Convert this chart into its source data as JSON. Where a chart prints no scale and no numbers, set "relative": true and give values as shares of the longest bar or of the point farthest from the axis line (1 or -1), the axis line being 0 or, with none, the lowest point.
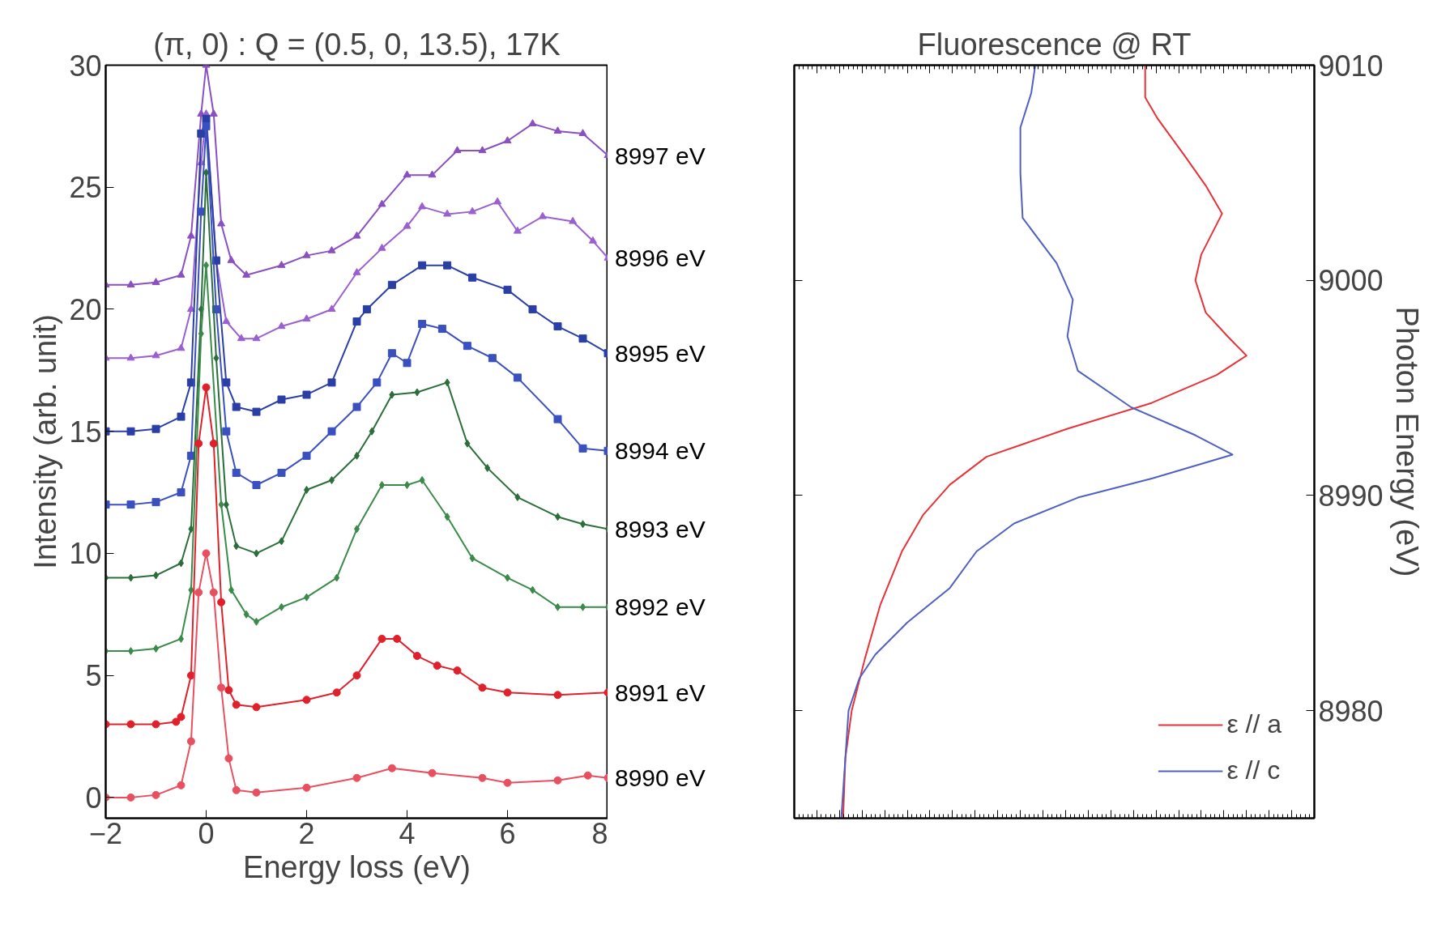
{
  "chart_data": [
    {
      "type": "line",
      "title": "(π, 0) : Q = (0.5, 0, 13.5), 17K",
      "xlabel": "Energy loss (eV)",
      "ylabel": "Intensity (arb. unit)",
      "xlim": [
        -2,
        8
      ],
      "ylim": [
        -0.85,
        30
      ],
      "xticks": [
        -2,
        0,
        2,
        4,
        6,
        8
      ],
      "yticks": [
        0,
        5,
        10,
        15,
        20,
        25,
        30
      ],
      "grid": false,
      "legend": false,
      "line_style": "solid",
      "series": [
        {
          "name": "8997 eV",
          "color": "#8a4fc0",
          "marker": "triangle",
          "x": [
            -2,
            -1.5,
            -1,
            -0.5,
            -0.3,
            -0.1,
            0,
            0.15,
            0.3,
            0.5,
            0.8,
            1.5,
            2,
            2.5,
            3,
            3.5,
            4,
            4.5,
            5,
            5.5,
            6,
            6.5,
            7,
            7.5,
            8
          ],
          "values": [
            21,
            21,
            21.1,
            21.4,
            23,
            28,
            30,
            28,
            23.5,
            22,
            21.4,
            21.8,
            22.2,
            22.4,
            23,
            24.3,
            25.5,
            25.5,
            26.5,
            26.5,
            26.9,
            27.6,
            27.3,
            27.2,
            26.3
          ]
        },
        {
          "name": "8996 eV",
          "color": "#9a5fd0",
          "marker": "triangle",
          "x": [
            -2,
            -1.5,
            -1,
            -0.5,
            -0.3,
            -0.1,
            0,
            0.2,
            0.4,
            0.7,
            1,
            1.5,
            2,
            2.5,
            3,
            3.5,
            4,
            4.3,
            4.8,
            5.3,
            5.8,
            6.2,
            6.7,
            7.3,
            7.7,
            8
          ],
          "values": [
            18,
            18,
            18.1,
            18.4,
            20,
            26,
            28,
            22,
            19.5,
            18.8,
            18.8,
            19.3,
            19.6,
            20,
            21.5,
            22.5,
            23.4,
            24.2,
            23.9,
            24,
            24.4,
            23.2,
            23.8,
            23.6,
            22.8,
            22.1
          ]
        },
        {
          "name": "8995 eV",
          "color": "#2a3fa6",
          "marker": "square",
          "x": [
            -2,
            -1.5,
            -1,
            -0.5,
            -0.3,
            -0.1,
            0,
            0.2,
            0.4,
            0.6,
            1,
            1.5,
            2,
            2.5,
            3,
            3.2,
            3.7,
            4.3,
            4.8,
            5.3,
            6,
            6.5,
            7,
            7.5,
            8
          ],
          "values": [
            15,
            15,
            15.1,
            15.6,
            17,
            27.2,
            27.8,
            22,
            17,
            16,
            15.8,
            16.3,
            16.5,
            17,
            19.5,
            20,
            21,
            21.8,
            21.8,
            21.3,
            20.8,
            20,
            19.3,
            18.8,
            18.2
          ]
        },
        {
          "name": "8994 eV",
          "color": "#3a50c0",
          "marker": "square",
          "x": [
            -2,
            -1.5,
            -1,
            -0.5,
            -0.3,
            -0.1,
            0,
            0.2,
            0.4,
            0.6,
            1,
            1.5,
            2,
            2.5,
            3,
            3.4,
            3.7,
            4,
            4.3,
            4.7,
            5.2,
            5.7,
            6.2,
            7,
            7.5,
            8
          ],
          "values": [
            12,
            12,
            12.1,
            12.5,
            14,
            24,
            27.5,
            20,
            15,
            13.3,
            12.8,
            13.3,
            14,
            15,
            16,
            17,
            18.2,
            17.8,
            19.4,
            19.2,
            18.5,
            18,
            17.2,
            15.5,
            14.3,
            14.2
          ]
        },
        {
          "name": "8993 eV",
          "color": "#2a6e3a",
          "marker": "diamond",
          "x": [
            -2,
            -1.5,
            -1,
            -0.5,
            -0.3,
            -0.1,
            0,
            0.2,
            0.4,
            0.6,
            1,
            1.5,
            2,
            2.5,
            3,
            3.3,
            3.7,
            4.2,
            4.8,
            5.2,
            5.6,
            6.2,
            7,
            7.5,
            8
          ],
          "values": [
            9,
            9,
            9.1,
            9.6,
            11,
            20,
            25.6,
            18,
            12,
            10.3,
            10,
            10.5,
            12.6,
            13,
            14,
            15,
            16.5,
            16.6,
            17,
            14.5,
            13.5,
            12.3,
            11.5,
            11.2,
            11
          ]
        },
        {
          "name": "8992 eV",
          "color": "#3a8a4a",
          "marker": "diamond",
          "x": [
            -2,
            -1.5,
            -1,
            -0.5,
            -0.3,
            -0.1,
            0,
            0.3,
            0.5,
            0.8,
            1,
            1.5,
            2,
            2.6,
            3,
            3.5,
            4,
            4.3,
            4.8,
            5.3,
            6,
            6.5,
            7,
            7.5,
            8
          ],
          "values": [
            6,
            6,
            6.1,
            6.5,
            8.5,
            19,
            21.8,
            12,
            8.5,
            7.5,
            7.2,
            7.8,
            8.2,
            9,
            11,
            12.8,
            12.8,
            13,
            11.5,
            9.8,
            9,
            8.5,
            7.8,
            7.8,
            7.8
          ]
        },
        {
          "name": "8991 eV",
          "color": "#e0202a",
          "marker": "circle",
          "x": [
            -2,
            -1.5,
            -1,
            -0.6,
            -0.5,
            -0.3,
            -0.15,
            0,
            0.15,
            0.3,
            0.45,
            0.6,
            1,
            2,
            2.6,
            3,
            3.5,
            3.8,
            4.2,
            4.6,
            5,
            5.5,
            6,
            7,
            8
          ],
          "values": [
            3,
            3,
            3,
            3.1,
            3.3,
            5,
            14.5,
            16.8,
            14.5,
            8,
            4.4,
            3.8,
            3.7,
            4,
            4.3,
            5,
            6.5,
            6.5,
            5.8,
            5.4,
            5.2,
            4.5,
            4.3,
            4.2,
            4.3
          ]
        },
        {
          "name": "8990 eV",
          "color": "#e85060",
          "marker": "circle",
          "x": [
            -2,
            -1.5,
            -1,
            -0.5,
            -0.3,
            -0.15,
            0,
            0.15,
            0.3,
            0.45,
            0.6,
            1,
            2,
            3,
            3.7,
            4.5,
            5.5,
            6,
            7,
            7.6,
            8
          ],
          "values": [
            0,
            0,
            0.1,
            0.5,
            2.3,
            8.4,
            10,
            8.4,
            4.5,
            1.6,
            0.3,
            0.2,
            0.4,
            0.8,
            1.2,
            1,
            0.8,
            0.6,
            0.7,
            0.9,
            0.8
          ]
        }
      ]
    },
    {
      "type": "line",
      "orientation": "horizontal",
      "relative": true,
      "title": "Fluorescence @ RT",
      "ylabel": "Photon Energy (eV)",
      "ylim": [
        8975,
        9010
      ],
      "yticks": [
        8980,
        8990,
        9000,
        9010
      ],
      "tick_labels": "y",
      "grid": false,
      "legend": "bottom right",
      "line_style": "solid",
      "series": [
        {
          "name": "ε // a",
          "color": "#e8323a",
          "x": [
            8975,
            8977.8,
            8980,
            8982.4,
            8984.9,
            8987.4,
            8989.1,
            8990.5,
            8991.8,
            8993.1,
            8994.3,
            8995.6,
            8996.5,
            8997.4,
            8998.5,
            9000,
            9001.2,
            9003.1,
            9004.4,
            9005.8,
            9007.5,
            9008.5,
            9010
          ],
          "values": [
            0.108,
            0.113,
            0.127,
            0.156,
            0.19,
            0.238,
            0.285,
            0.344,
            0.425,
            0.604,
            0.79,
            0.934,
            1.0,
            0.958,
            0.91,
            0.887,
            0.9,
            0.946,
            0.91,
            0.863,
            0.804,
            0.776,
            0.776
          ]
        },
        {
          "name": "ε // c",
          "color": "#5060c0",
          "x": [
            8975,
            8977.8,
            8980,
            8981.5,
            8982.6,
            8984.1,
            8985.7,
            8987.4,
            8988.7,
            8989.9,
            8990.8,
            8991.9,
            8992.8,
            8994.1,
            8995.8,
            8997.4,
            8999.1,
            9000.8,
            9002.9,
            9005,
            9007.1,
            9008.7,
            9010
          ],
          "values": [
            0.104,
            0.113,
            0.12,
            0.144,
            0.179,
            0.25,
            0.344,
            0.403,
            0.486,
            0.627,
            0.792,
            0.969,
            0.887,
            0.745,
            0.627,
            0.604,
            0.616,
            0.58,
            0.505,
            0.5,
            0.5,
            0.524,
            0.533
          ]
        }
      ]
    }
  ]
}
